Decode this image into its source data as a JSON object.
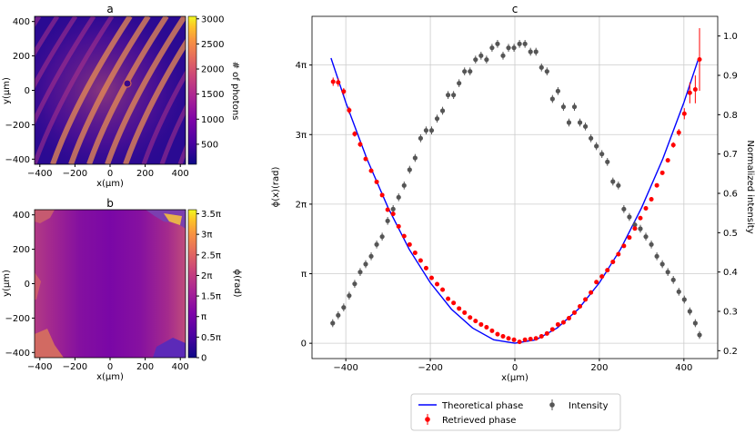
{
  "panels": {
    "a": {
      "label": "a",
      "xlabel": "x(μm)",
      "ylabel": "y(μm)",
      "xticks": [
        "−400",
        "−200",
        "0",
        "200",
        "400"
      ],
      "yticks": [
        "400",
        "200",
        "0",
        "−200",
        "−400"
      ],
      "colorbar": {
        "label": "# of photons",
        "ticks": [
          "3000",
          "2500",
          "2000",
          "1500",
          "1000",
          "500"
        ]
      }
    },
    "b": {
      "label": "b",
      "xlabel": "x(μm)",
      "ylabel": "y(μm)",
      "xticks": [
        "−400",
        "−200",
        "0",
        "200",
        "400"
      ],
      "yticks": [
        "400",
        "200",
        "0",
        "−200",
        "−400"
      ],
      "colorbar": {
        "label": "ϕ(rad)",
        "ticks": [
          "3.5π",
          "3π",
          "2.5π",
          "2π",
          "1.5π",
          "π",
          "0.5π",
          "0"
        ]
      }
    },
    "c": {
      "label": "c",
      "xlabel": "x(μm)",
      "ylabel": "ϕ(x)(rad)",
      "y2label": "Normalized intensity",
      "xticks": [
        "−400",
        "−200",
        "0",
        "200",
        "400"
      ],
      "yticks": [
        "0",
        "π",
        "2π",
        "3π",
        "4π"
      ],
      "y2ticks": [
        "0.2",
        "0.3",
        "0.4",
        "0.5",
        "0.6",
        "0.7",
        "0.8",
        "0.9",
        "1.0"
      ]
    }
  },
  "legend": {
    "theoretical": "Theoretical phase",
    "retrieved": "Retrieved phase",
    "intensity": "Intensity"
  },
  "colors": {
    "theoretical": "#0000ff",
    "retrieved": "#ff0000",
    "intensity": "#555555",
    "grid": "#cccccc"
  },
  "chart_data": [
    {
      "type": "heatmap",
      "panel": "a",
      "xlim": [
        -430,
        430
      ],
      "ylim": [
        -430,
        430
      ],
      "colorbar_range": [
        100,
        3050
      ],
      "colormap": "plasma"
    },
    {
      "type": "heatmap",
      "panel": "b",
      "xlim": [
        -430,
        430
      ],
      "ylim": [
        -430,
        430
      ],
      "colorbar_range_pi": [
        0,
        3.6
      ],
      "colormap": "plasma"
    },
    {
      "type": "scatter",
      "panel": "c",
      "xlim": [
        -480,
        480
      ],
      "ylim_pi": [
        -0.22,
        4.7
      ],
      "y2lim": [
        0.18,
        1.05
      ],
      "grid": true,
      "legend_position": "below",
      "series": [
        {
          "name": "Theoretical phase",
          "kind": "line",
          "x": [
            -435,
            -400,
            -350,
            -300,
            -250,
            -200,
            -150,
            -100,
            -50,
            0,
            50,
            100,
            150,
            200,
            250,
            300,
            350,
            400,
            435
          ],
          "y_pi": [
            4.1,
            3.46,
            2.65,
            1.95,
            1.35,
            0.87,
            0.49,
            0.22,
            0.05,
            0,
            0.05,
            0.22,
            0.49,
            0.87,
            1.35,
            1.95,
            2.65,
            3.46,
            4.1
          ]
        },
        {
          "name": "Retrieved phase",
          "kind": "points",
          "x": [
            -430,
            -418,
            -405,
            -392,
            -379,
            -366,
            -353,
            -340,
            -327,
            -314,
            -301,
            -288,
            -275,
            -262,
            -249,
            -236,
            -223,
            -210,
            -197,
            -184,
            -171,
            -158,
            -145,
            -132,
            -119,
            -106,
            -93,
            -80,
            -67,
            -54,
            -41,
            -28,
            -15,
            -2,
            11,
            24,
            37,
            50,
            63,
            76,
            89,
            102,
            115,
            128,
            141,
            154,
            167,
            180,
            193,
            206,
            219,
            232,
            245,
            258,
            271,
            284,
            297,
            310,
            323,
            336,
            349,
            362,
            375,
            388,
            401,
            414,
            427,
            437
          ],
          "y_pi": [
            3.76,
            3.75,
            3.62,
            3.35,
            3.01,
            2.86,
            2.65,
            2.48,
            2.32,
            2.13,
            1.92,
            1.86,
            1.68,
            1.54,
            1.42,
            1.3,
            1.19,
            1.08,
            0.94,
            0.85,
            0.77,
            0.64,
            0.58,
            0.5,
            0.44,
            0.37,
            0.32,
            0.27,
            0.23,
            0.18,
            0.13,
            0.1,
            0.07,
            0.05,
            0.02,
            0.05,
            0.06,
            0.07,
            0.1,
            0.14,
            0.2,
            0.27,
            0.3,
            0.36,
            0.44,
            0.53,
            0.63,
            0.73,
            0.88,
            0.96,
            1.05,
            1.17,
            1.28,
            1.4,
            1.52,
            1.65,
            1.8,
            1.94,
            2.07,
            2.27,
            2.45,
            2.63,
            2.85,
            3.03,
            3.3,
            3.6,
            3.65,
            4.08
          ],
          "err_pi": [
            0.06,
            0.06,
            0.05,
            0.05,
            0.04,
            0.04,
            0.03,
            0.03,
            0.03,
            0.03,
            0.03,
            0.03,
            0.03,
            0.03,
            0.03,
            0.03,
            0.03,
            0.03,
            0.03,
            0.03,
            0.03,
            0.03,
            0.03,
            0.03,
            0.03,
            0.03,
            0.03,
            0.03,
            0.03,
            0.03,
            0.03,
            0.03,
            0.03,
            0.03,
            0.03,
            0.03,
            0.03,
            0.03,
            0.03,
            0.03,
            0.03,
            0.03,
            0.03,
            0.03,
            0.03,
            0.03,
            0.03,
            0.03,
            0.03,
            0.03,
            0.03,
            0.03,
            0.03,
            0.03,
            0.03,
            0.03,
            0.03,
            0.03,
            0.03,
            0.03,
            0.03,
            0.03,
            0.04,
            0.05,
            0.08,
            0.15,
            0.2,
            0.45
          ]
        },
        {
          "name": "Intensity",
          "kind": "points",
          "axis": "right",
          "x": [
            -431,
            -418,
            -405,
            -392,
            -379,
            -366,
            -353,
            -340,
            -327,
            -314,
            -301,
            -288,
            -275,
            -262,
            -249,
            -236,
            -223,
            -210,
            -197,
            -184,
            -171,
            -158,
            -145,
            -132,
            -119,
            -106,
            -93,
            -80,
            -67,
            -54,
            -41,
            -28,
            -15,
            -2,
            11,
            24,
            37,
            50,
            63,
            76,
            89,
            102,
            115,
            128,
            141,
            154,
            167,
            180,
            193,
            206,
            219,
            232,
            245,
            258,
            271,
            284,
            297,
            310,
            323,
            336,
            349,
            362,
            375,
            388,
            401,
            414,
            427,
            437
          ],
          "y": [
            0.27,
            0.29,
            0.31,
            0.34,
            0.37,
            0.4,
            0.42,
            0.44,
            0.47,
            0.49,
            0.53,
            0.56,
            0.59,
            0.62,
            0.66,
            0.69,
            0.74,
            0.76,
            0.76,
            0.79,
            0.81,
            0.85,
            0.85,
            0.88,
            0.91,
            0.91,
            0.94,
            0.95,
            0.94,
            0.97,
            0.98,
            0.95,
            0.97,
            0.97,
            0.98,
            0.98,
            0.96,
            0.96,
            0.92,
            0.91,
            0.84,
            0.86,
            0.82,
            0.78,
            0.82,
            0.78,
            0.77,
            0.74,
            0.72,
            0.7,
            0.68,
            0.63,
            0.62,
            0.56,
            0.54,
            0.52,
            0.51,
            0.49,
            0.47,
            0.44,
            0.42,
            0.4,
            0.38,
            0.35,
            0.33,
            0.3,
            0.27,
            0.24
          ],
          "err": [
            0.01,
            0.01,
            0.01,
            0.01,
            0.01,
            0.01,
            0.01,
            0.01,
            0.01,
            0.01,
            0.01,
            0.01,
            0.01,
            0.01,
            0.01,
            0.01,
            0.01,
            0.01,
            0.01,
            0.01,
            0.01,
            0.01,
            0.01,
            0.01,
            0.01,
            0.01,
            0.01,
            0.01,
            0.01,
            0.01,
            0.01,
            0.01,
            0.01,
            0.01,
            0.01,
            0.01,
            0.01,
            0.01,
            0.01,
            0.01,
            0.01,
            0.01,
            0.01,
            0.01,
            0.01,
            0.01,
            0.01,
            0.01,
            0.01,
            0.01,
            0.01,
            0.01,
            0.01,
            0.01,
            0.01,
            0.01,
            0.01,
            0.01,
            0.01,
            0.01,
            0.01,
            0.01,
            0.01,
            0.01,
            0.01,
            0.01,
            0.01,
            0.01
          ]
        }
      ]
    }
  ]
}
